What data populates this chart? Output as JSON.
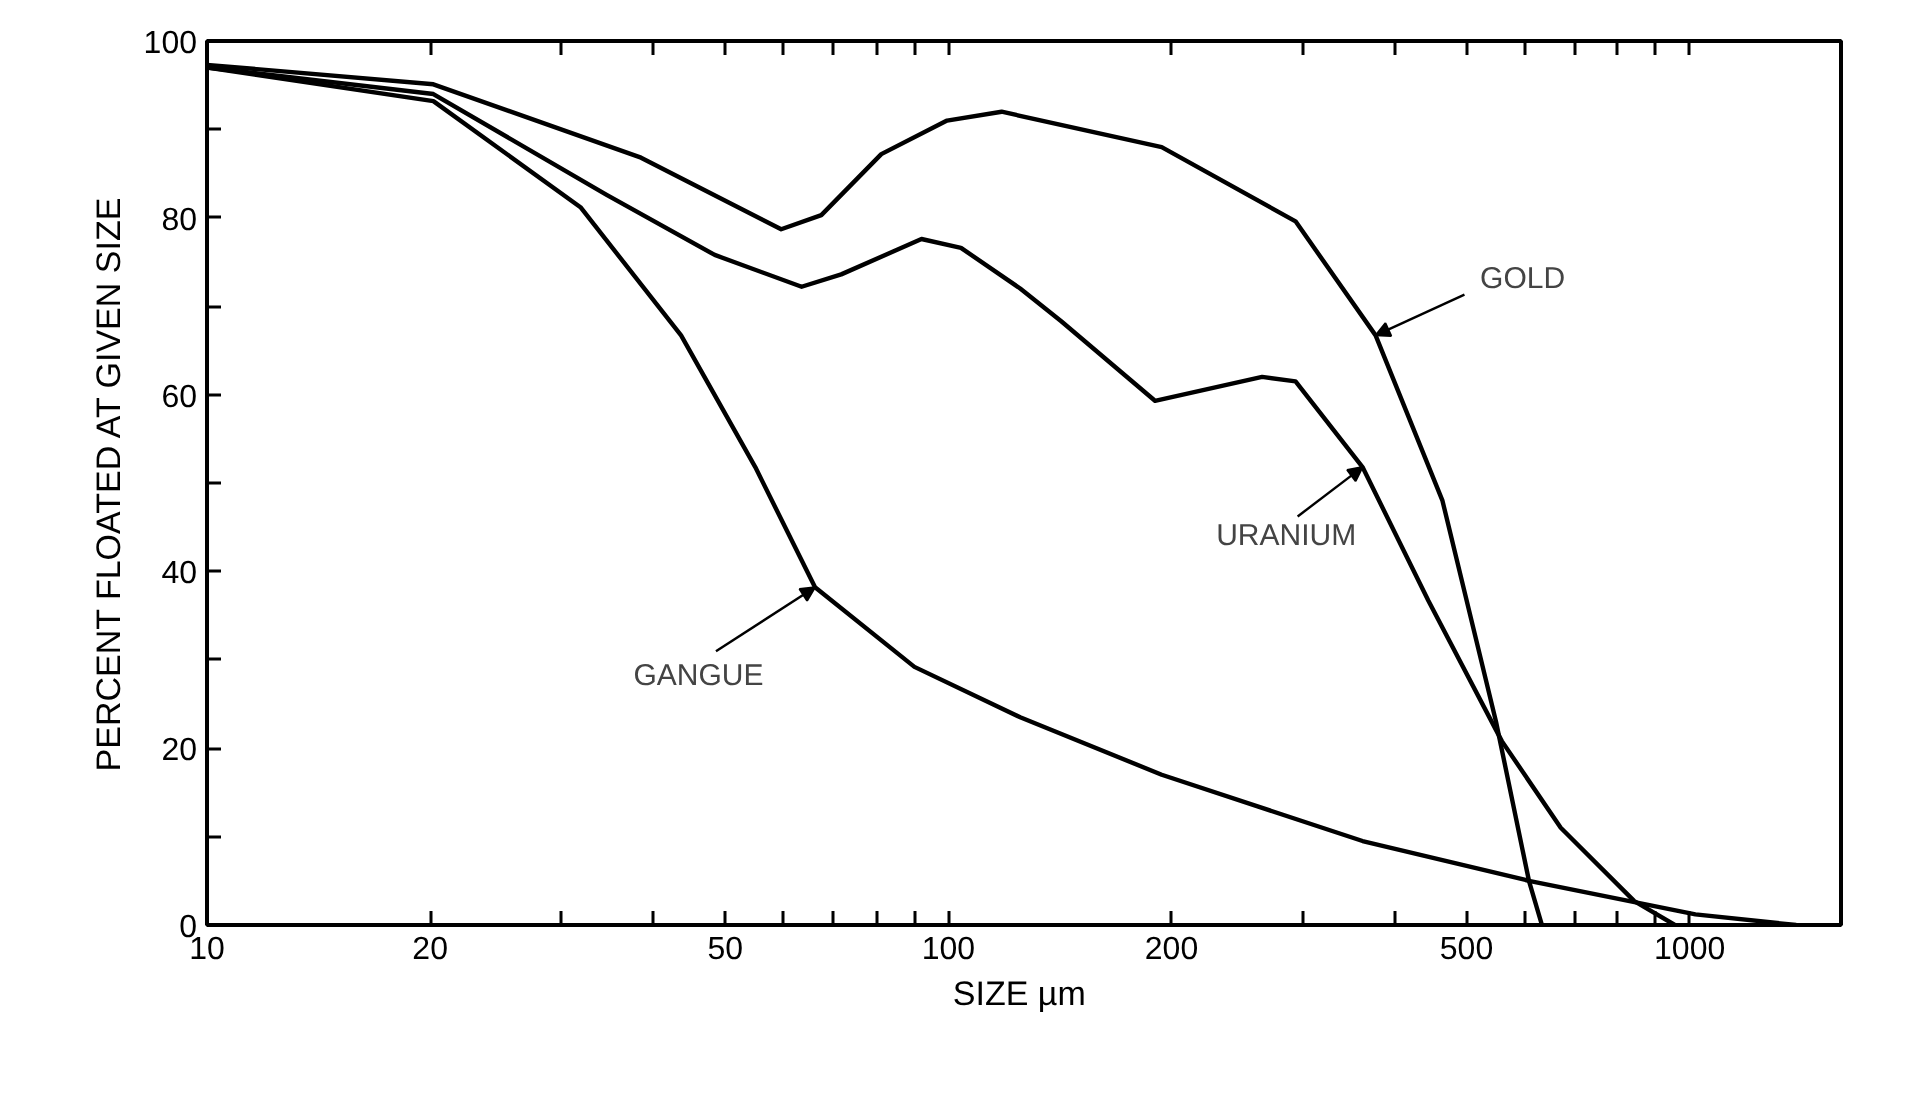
{
  "chart_data": {
    "type": "line",
    "xlabel": "SIZE  µm",
    "ylabel": "PERCENT FLOATED AT GIVEN SIZE",
    "log": "x",
    "grid": false,
    "marker": "none",
    "line_style": "solid",
    "xlim": [
      10,
      1600
    ],
    "ylim": [
      0,
      100
    ],
    "xticks": [
      10,
      20,
      {
        "value": 30,
        "label": null
      },
      {
        "value": 40,
        "label": null
      },
      50,
      {
        "value": 60,
        "label": null
      },
      {
        "value": 70,
        "label": null
      },
      {
        "value": 80,
        "label": null
      },
      {
        "value": 90,
        "label": null
      },
      100,
      200,
      {
        "value": 300,
        "label": null
      },
      {
        "value": 400,
        "label": null
      },
      500,
      {
        "value": 600,
        "label": null
      },
      {
        "value": 700,
        "label": null
      },
      {
        "value": 800,
        "label": null
      },
      {
        "value": 900,
        "label": null
      },
      1000
    ],
    "yticks": [
      0,
      {
        "value": 10,
        "label": null
      },
      20,
      {
        "value": 30,
        "label": null
      },
      40,
      {
        "value": 50,
        "label": null
      },
      60,
      {
        "value": 70,
        "label": null
      },
      80,
      {
        "value": 90,
        "label": null
      },
      100
    ],
    "series": [
      {
        "color": "#000000",
        "x": [
          10,
          20.2,
          38.5,
          59.5,
          67.4,
          81.2,
          99.6,
          118,
          194,
          294,
          377,
          464,
          548,
          607,
          632
        ],
        "values": [
          97.3,
          95.1,
          86.8,
          78.7,
          80.3,
          87.2,
          91,
          92,
          88,
          79.6,
          66.7,
          48,
          23,
          5,
          0
        ]
      },
      {
        "color": "#000000",
        "x": [
          10,
          20.2,
          34.6,
          48.4,
          63.4,
          71.7,
          92,
          104,
          125,
          142,
          190,
          265,
          294,
          362,
          444,
          558,
          670,
          842,
          955
        ],
        "values": [
          97,
          94,
          82.6,
          75.8,
          72.2,
          73.6,
          77.6,
          76.6,
          72,
          68.3,
          59.3,
          62,
          61.5,
          51.8,
          36.7,
          20.8,
          11,
          2.7,
          0
        ]
      },
      {
        "color": "#000000",
        "x": [
          10,
          20.2,
          31.9,
          43.6,
          54.9,
          66.1,
          90,
          125,
          194,
          362,
          607,
          1018,
          1392
        ],
        "values": [
          97,
          93.2,
          81.2,
          66.7,
          51.8,
          38.2,
          29.2,
          23.5,
          17,
          9.5,
          5,
          1.2,
          0
        ]
      }
    ],
    "annotations": [
      {
        "text": "GOLD",
        "x": 377,
        "y": 66.7
      },
      {
        "text": "URANIUM",
        "x": 362,
        "y": 51.8
      },
      {
        "text": "GANGUE",
        "x": 66.1,
        "y": 38.2
      }
    ]
  }
}
